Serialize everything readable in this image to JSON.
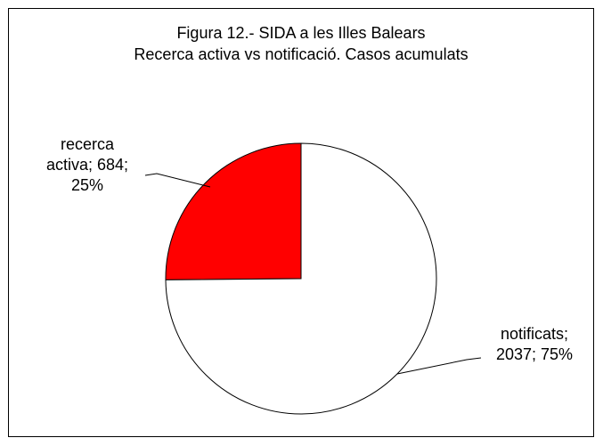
{
  "chart_data": {
    "type": "pie",
    "title": [
      "Figura  12.- SIDA  a les Illes Balears",
      "Recerca activa vs notificació.  Casos acumulats"
    ],
    "categories": [
      "recerca activa",
      "notificats"
    ],
    "values": [
      684,
      2037
    ],
    "colors": [
      "#ff0000",
      "#ffffff"
    ],
    "labels": [
      [
        "recerca",
        "activa; 684;",
        "25%"
      ],
      [
        "notificats;",
        "2037; 75%"
      ]
    ]
  }
}
